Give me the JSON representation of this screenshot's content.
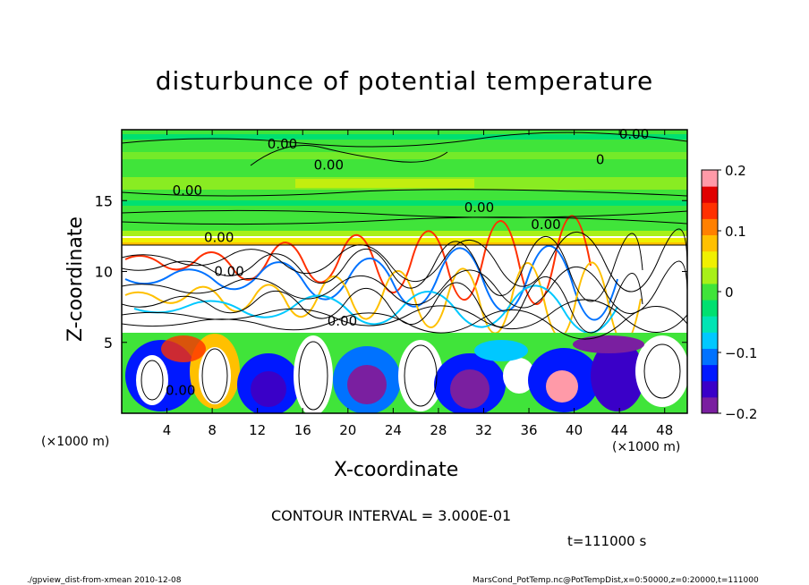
{
  "chart_data": {
    "type": "heatmap",
    "title": "disturbunce of potential temperature",
    "xlabel": "X-coordinate",
    "ylabel": "Z-coordinate",
    "x_unit": "(×1000 m)",
    "z_unit": "(×1000 m)",
    "xlim": [
      0,
      50
    ],
    "ylim": [
      0,
      20
    ],
    "x_ticks": [
      4,
      8,
      12,
      16,
      20,
      24,
      28,
      32,
      36,
      40,
      44,
      48
    ],
    "y_ticks": [
      5,
      10,
      15
    ],
    "colorbar": {
      "range": [
        -0.2,
        0.2
      ],
      "ticks": [
        "0.2",
        "0.1",
        "0",
        "−0.1",
        "−0.2"
      ],
      "colors": [
        "#7a1fa0",
        "#3a00c8",
        "#0018ff",
        "#0072ff",
        "#00c8ff",
        "#00e4b4",
        "#00e070",
        "#40e43a",
        "#a8f018",
        "#f0f000",
        "#ffc000",
        "#ff8000",
        "#ff3000",
        "#e00000",
        "#ff9aa8"
      ]
    },
    "contour_labels": [
      {
        "text": "0.00",
        "x": 14.2,
        "z": 19.0
      },
      {
        "text": "0.00",
        "x": 45.3,
        "z": 19.7
      },
      {
        "text": "0.00",
        "x": 18.3,
        "z": 17.5
      },
      {
        "text": "0",
        "x": 42.3,
        "z": 17.9
      },
      {
        "text": "0.00",
        "x": 5.8,
        "z": 15.7
      },
      {
        "text": "0.00",
        "x": 31.6,
        "z": 14.5
      },
      {
        "text": "0.00",
        "x": 37.5,
        "z": 13.3
      },
      {
        "text": "0.00",
        "x": 8.6,
        "z": 12.4
      },
      {
        "text": "0.00",
        "x": 9.5,
        "z": 10.0
      },
      {
        "text": "0.00",
        "x": 19.5,
        "z": 6.5
      },
      {
        "text": "0.00",
        "x": 5.2,
        "z": 1.6
      }
    ],
    "contour_interval": "CONTOUR INTERVAL = 3.000E-01",
    "time_label": "t=111000 s"
  },
  "footer": {
    "left": "./gpview_dist-from-xmean  2010-12-08",
    "right": "MarsCond_PotTemp.nc@PotTempDist,x=0:50000,z=0:20000,t=111000"
  }
}
